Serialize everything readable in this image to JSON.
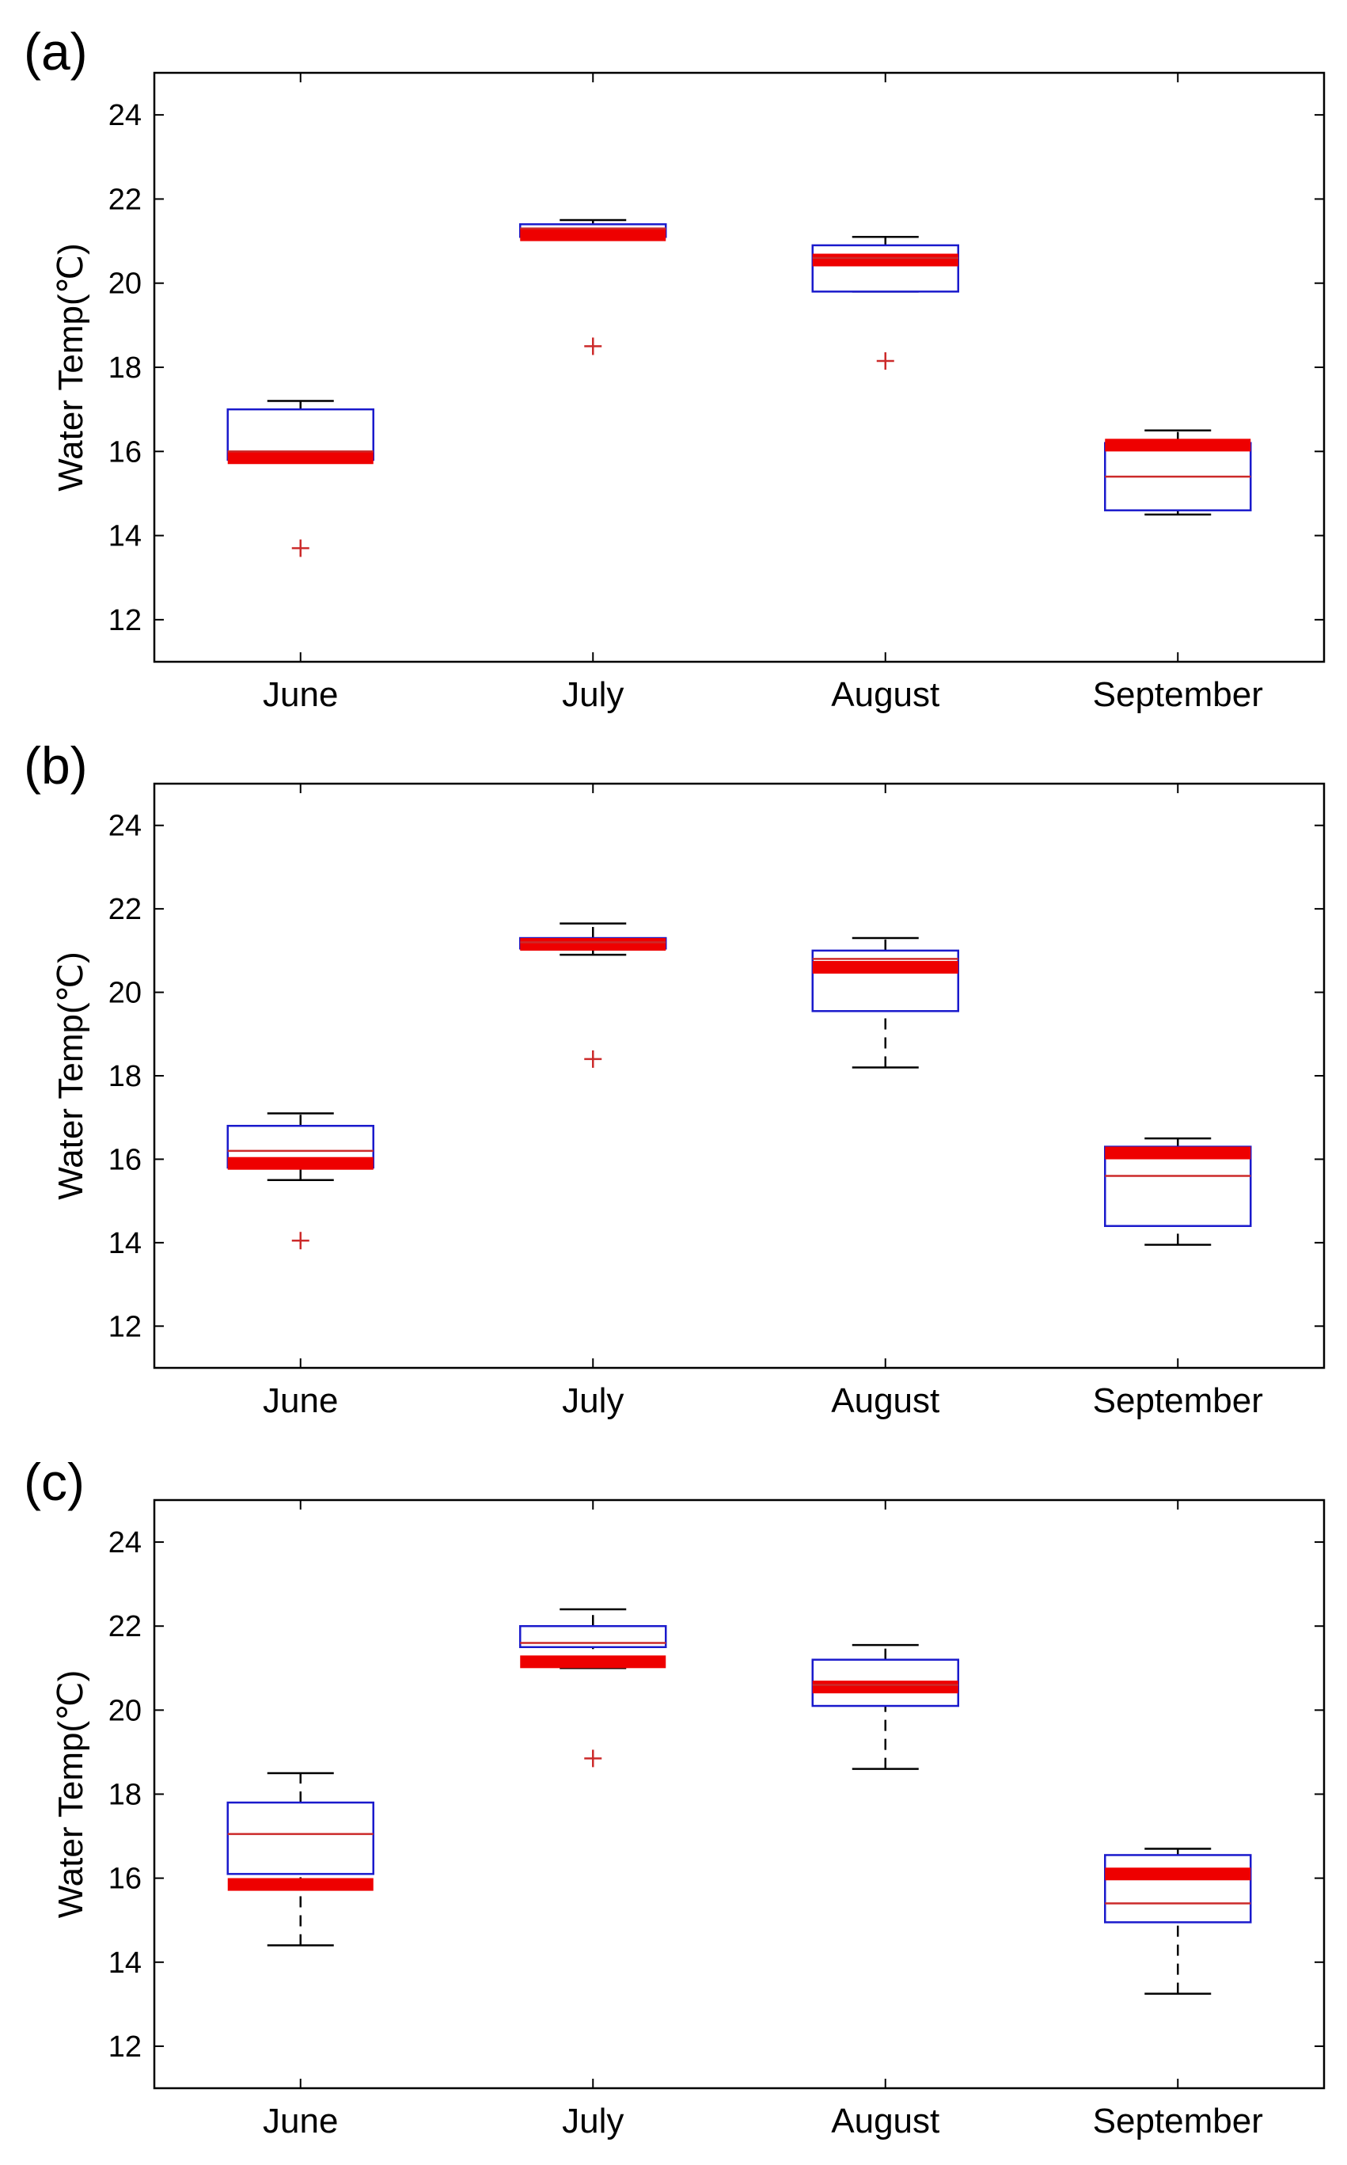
{
  "figure": {
    "colors": {
      "box": "#1a1acc",
      "median": "#cc2a2a",
      "mean_bar": "#ee0000",
      "whisker": "#000000",
      "outlier": "#cc2a2a",
      "axes": "#000000"
    }
  },
  "chart_data": [
    {
      "type": "box",
      "panel_label": "(a)",
      "ylabel": "Water Temp(℃)",
      "ylim": [
        11,
        25
      ],
      "yticks": [
        12,
        14,
        16,
        18,
        20,
        22,
        24
      ],
      "categories": [
        "June",
        "July",
        "August",
        "September"
      ],
      "boxes": [
        {
          "category": "June",
          "whisker_low": 15.8,
          "q1": 15.8,
          "median": 16.0,
          "q3": 17.0,
          "whisker_high": 17.2,
          "highlight": 15.85,
          "outliers": [
            13.7
          ]
        },
        {
          "category": "July",
          "whisker_low": 21.1,
          "q1": 21.1,
          "median": 21.3,
          "q3": 21.4,
          "whisker_high": 21.5,
          "highlight": 21.15,
          "outliers": [
            18.5
          ]
        },
        {
          "category": "August",
          "whisker_low": 19.8,
          "q1": 19.8,
          "median": 20.6,
          "q3": 20.9,
          "whisker_high": 21.1,
          "highlight": 20.55,
          "outliers": [
            18.15
          ]
        },
        {
          "category": "September",
          "whisker_low": 14.5,
          "q1": 14.6,
          "median": 15.4,
          "q3": 16.2,
          "whisker_high": 16.5,
          "highlight": 16.15,
          "outliers": []
        }
      ]
    },
    {
      "type": "box",
      "panel_label": "(b)",
      "ylabel": "Water Temp(℃)",
      "ylim": [
        11,
        25
      ],
      "yticks": [
        12,
        14,
        16,
        18,
        20,
        22,
        24
      ],
      "categories": [
        "June",
        "July",
        "August",
        "September"
      ],
      "boxes": [
        {
          "category": "June",
          "whisker_low": 15.5,
          "q1": 15.8,
          "median": 16.2,
          "q3": 16.8,
          "whisker_high": 17.1,
          "highlight": 15.9,
          "outliers": [
            14.05
          ]
        },
        {
          "category": "July",
          "whisker_low": 20.9,
          "q1": 21.05,
          "median": 21.2,
          "q3": 21.3,
          "whisker_high": 21.65,
          "highlight": 21.15,
          "outliers": [
            18.4
          ]
        },
        {
          "category": "August",
          "whisker_low": 18.2,
          "q1": 19.55,
          "median": 20.8,
          "q3": 21.0,
          "whisker_high": 21.3,
          "highlight": 20.6,
          "outliers": []
        },
        {
          "category": "September",
          "whisker_low": 13.95,
          "q1": 14.4,
          "median": 15.6,
          "q3": 16.3,
          "whisker_high": 16.5,
          "highlight": 16.15,
          "outliers": []
        }
      ]
    },
    {
      "type": "box",
      "panel_label": "(c)",
      "ylabel": "Water Temp(℃)",
      "ylim": [
        11,
        25
      ],
      "yticks": [
        12,
        14,
        16,
        18,
        20,
        22,
        24
      ],
      "categories": [
        "June",
        "July",
        "August",
        "September"
      ],
      "boxes": [
        {
          "category": "June",
          "whisker_low": 14.4,
          "q1": 16.1,
          "median": 17.05,
          "q3": 17.8,
          "whisker_high": 18.5,
          "highlight": 15.85,
          "outliers": []
        },
        {
          "category": "July",
          "whisker_low": 21.0,
          "q1": 21.5,
          "median": 21.6,
          "q3": 22.0,
          "whisker_high": 22.4,
          "highlight": 21.15,
          "outliers": [
            18.85
          ]
        },
        {
          "category": "August",
          "whisker_low": 18.6,
          "q1": 20.1,
          "median": 20.6,
          "q3": 21.2,
          "whisker_high": 21.55,
          "highlight": 20.55,
          "outliers": []
        },
        {
          "category": "September",
          "whisker_low": 13.25,
          "q1": 14.95,
          "median": 15.4,
          "q3": 16.55,
          "whisker_high": 16.7,
          "highlight": 16.1,
          "outliers": []
        }
      ]
    }
  ]
}
